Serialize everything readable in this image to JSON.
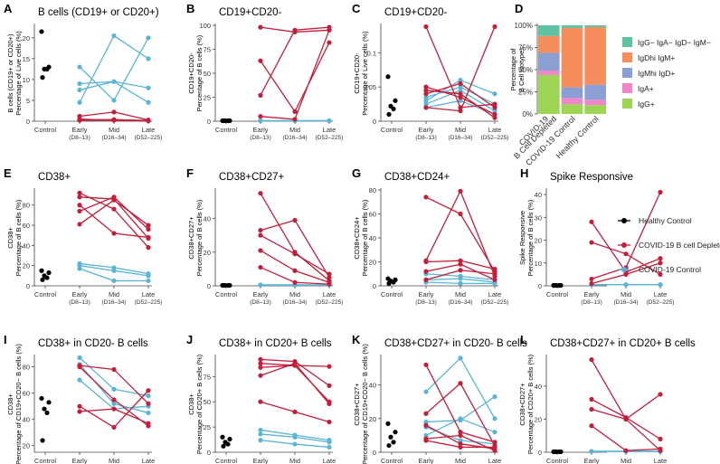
{
  "legend": {
    "title": "",
    "items": [
      {
        "label": "Healthy Control",
        "color": "#000000"
      },
      {
        "label": "COVID-19 B cell Depleted",
        "color": "#c41e3a"
      },
      {
        "label": "COVID-19 Control",
        "color": "#5ab4d6"
      }
    ]
  },
  "chart_data": [
    {
      "letter": "A",
      "type": "scatter",
      "title": "B cells (CD19+ or CD20+)",
      "ylabel": [
        "B cells (CD19+ or CD20+)",
        "Percentage of Live cells (%)"
      ],
      "ylim": [
        0,
        23
      ],
      "yticks": [
        0,
        5,
        10,
        15,
        20
      ],
      "xcats": [
        "Control",
        "Early\n(D8–13)",
        "Mid\n(D16–34)",
        "Late\n(D52–225)"
      ],
      "control": [
        21.5,
        13,
        12.5,
        12.5,
        10.5
      ],
      "depleted": [
        [
          1.2,
          2.2,
          0.3
        ],
        [
          0.3,
          0.4,
          0.1
        ],
        [
          0.5,
          0.2,
          0.1
        ],
        [
          0.2,
          0.3,
          0.2
        ]
      ],
      "covidctrl": [
        [
          13,
          5,
          20
        ],
        [
          7.5,
          9.5,
          4.5
        ],
        [
          9,
          9.5,
          8
        ],
        [
          4.5,
          20.5,
          15
        ]
      ]
    },
    {
      "letter": "B",
      "type": "scatter",
      "title": "CD19+CD20-",
      "ylabel": [
        "CD19+CD20-",
        "Percentage of B cells (%)"
      ],
      "ylim": [
        0,
        100
      ],
      "yticks": [
        0,
        25,
        50,
        75,
        100
      ],
      "xcats": [
        "Control",
        "Early\n(D8–13)",
        "Mid\n(D16–34)",
        "Late\n(D52–225)"
      ],
      "control": [
        0.5,
        0.5,
        0.5,
        0.5,
        0.5
      ],
      "depleted": [
        [
          98,
          93,
          95
        ],
        [
          63,
          10,
          82
        ],
        [
          27,
          95,
          98
        ],
        [
          5,
          2,
          95
        ]
      ],
      "covidctrl": [
        [
          0.5,
          0.5,
          0.5
        ],
        [
          0.5,
          0.5,
          0.5
        ],
        [
          0.5,
          0.5,
          0.5
        ]
      ]
    },
    {
      "letter": "C",
      "type": "scatter",
      "title": "CD19+CD20-",
      "ylabel": [
        "CD19+CD20-",
        "Percentage of Live cells (%)"
      ],
      "ylim": [
        0,
        0.14
      ],
      "yticks": [
        0,
        0.05,
        0.1
      ],
      "xcats": [
        "Control",
        "Early\n(D8–13)",
        "Mid\n(D16–34)",
        "Late\n(D52–225)"
      ],
      "control": [
        0.065,
        0.03,
        0.022,
        0.018,
        0.01
      ],
      "depleted": [
        [
          0.138,
          0.02,
          0.025
        ],
        [
          0.05,
          0.035,
          0.01
        ],
        [
          0.04,
          0.055,
          0.02
        ],
        [
          0.02,
          0.015,
          0.138
        ],
        [
          0.045,
          0.04,
          0.005
        ]
      ],
      "covidctrl": [
        [
          0.03,
          0.06,
          0.04
        ],
        [
          0.025,
          0.045,
          0.015
        ],
        [
          0.035,
          0.05,
          0.025
        ],
        [
          0.02,
          0.03,
          0.01
        ]
      ]
    },
    {
      "letter": "D",
      "type": "stacked-bar",
      "title": "",
      "ylabel": [
        "Percentage of",
        "B Cell Isotypes"
      ],
      "ylim": [
        0,
        100
      ],
      "yticks": [
        "0%",
        "25%",
        "50%",
        "75%",
        "100%"
      ],
      "categories": [
        "COVID-19\nB Cell Depleted",
        "COVID-19 Control",
        "Healthy Control"
      ],
      "series": [
        {
          "name": "IgG− IgA− IgD− IgM−",
          "color": "#5fc2a3",
          "values": [
            12,
            3,
            2
          ]
        },
        {
          "name": "IgDhi IgM+",
          "color": "#f58d5c",
          "values": [
            19,
            67,
            65
          ]
        },
        {
          "name": "IgMhi IgD+",
          "color": "#8c9fd2",
          "values": [
            20,
            12,
            17
          ]
        },
        {
          "name": "IgA+",
          "color": "#ee86c8",
          "values": [
            5,
            7,
            6
          ]
        },
        {
          "name": "IgG+",
          "color": "#9ed454",
          "values": [
            44,
            11,
            10
          ]
        }
      ]
    },
    {
      "letter": "E",
      "type": "scatter",
      "title": "CD38+",
      "ylabel": [
        "CD38+",
        "Percentage of B cells (%)"
      ],
      "ylim": [
        0,
        95
      ],
      "yticks": [
        0,
        20,
        40,
        60,
        80
      ],
      "xcats": [
        "Control",
        "Early\n(D8–13)",
        "Mid\n(D16–34)",
        "Late\n(D52–225)"
      ],
      "control": [
        15,
        13,
        10,
        8,
        6
      ],
      "depleted": [
        [
          92,
          76,
          38
        ],
        [
          88,
          86,
          47
        ],
        [
          80,
          52,
          48
        ],
        [
          74,
          88,
          56
        ],
        [
          61,
          85,
          60
        ]
      ],
      "covidctrl": [
        [
          22,
          18,
          12
        ],
        [
          20,
          15,
          10
        ],
        [
          17,
          5,
          5
        ]
      ]
    },
    {
      "letter": "F",
      "type": "scatter",
      "title": "CD38+CD27+",
      "ylabel": [
        "CD38+CD27+",
        "Percentage of B cells (%)"
      ],
      "ylim": [
        0,
        57
      ],
      "yticks": [
        0,
        20,
        40
      ],
      "xcats": [
        "Control",
        "Early\n(D8–13)",
        "Mid\n(D16–34)",
        "Late\n(D52–225)"
      ],
      "control": [
        0.3,
        0.3,
        0.3,
        0.3,
        0.3
      ],
      "depleted": [
        [
          55,
          20,
          3
        ],
        [
          33,
          39,
          5
        ],
        [
          30,
          19,
          7
        ],
        [
          21,
          9,
          2
        ],
        [
          11,
          2,
          1
        ]
      ],
      "covidctrl": [
        [
          0.5,
          0.5,
          0.5
        ],
        [
          0.5,
          0.5,
          0.5
        ],
        [
          0.5,
          0.5,
          0.5
        ]
      ]
    },
    {
      "letter": "G",
      "type": "scatter",
      "title": "CD38+CD24+",
      "ylabel": [
        "CD38+CD24+",
        "Percentage of B cells (%)"
      ],
      "ylim": [
        0,
        80
      ],
      "yticks": [
        0,
        20,
        40,
        60,
        80
      ],
      "xcats": [
        "Control",
        "Early\n(D8–13)",
        "Mid\n(D16–34)",
        "Late\n(D52–225)"
      ],
      "control": [
        6,
        5,
        4,
        3,
        2
      ],
      "depleted": [
        [
          74,
          60,
          12
        ],
        [
          21,
          79,
          8
        ],
        [
          20,
          21,
          14
        ],
        [
          12,
          18,
          5
        ],
        [
          5,
          13,
          10
        ]
      ],
      "covidctrl": [
        [
          10,
          8,
          5
        ],
        [
          5,
          6,
          3
        ],
        [
          3,
          2,
          2
        ]
      ]
    },
    {
      "letter": "H",
      "type": "scatter",
      "title": "Spike Responsive",
      "ylabel": [
        "Spike Responsive",
        "Percentage of B cells (%)"
      ],
      "ylim": [
        0,
        42
      ],
      "yticks": [
        0,
        10,
        20,
        30,
        40
      ],
      "xcats": [
        "Control",
        "Early\n(D8–13)",
        "Mid\n(D16–34)",
        "Late\n(D52–225)"
      ],
      "control": [
        0.2,
        0.2,
        0.2,
        0.2,
        0.2
      ],
      "depleted": [
        [
          28,
          6,
          12
        ],
        [
          19,
          14,
          5
        ],
        [
          3,
          8,
          41
        ],
        [
          1,
          5,
          10
        ]
      ],
      "covidctrl": [
        [
          0.5,
          0.5,
          0.5
        ],
        [
          0.5,
          0.5,
          0.5
        ]
      ]
    },
    {
      "letter": "I",
      "type": "scatter",
      "title": "CD38+ in CD20- B cells",
      "ylabel": [
        "CD38+",
        "Percentage of CD19+CD20− B cells (%)"
      ],
      "ylim": [
        15,
        88
      ],
      "yticks": [
        20,
        40,
        60,
        80
      ],
      "xcats": [
        "Control",
        "Early\n(D8–13)",
        "Mid\n(D16–34)",
        "Late\n(D52–225)"
      ],
      "control": [
        56,
        53,
        48,
        45,
        24
      ],
      "depleted": [
        [
          81,
          78,
          52
        ],
        [
          80,
          55,
          35
        ],
        [
          50,
          34,
          62
        ],
        [
          46,
          48,
          37
        ]
      ],
      "covidctrl": [
        [
          87,
          63,
          58
        ],
        [
          82,
          52,
          45
        ],
        [
          70,
          48,
          50
        ]
      ]
    },
    {
      "letter": "J",
      "type": "scatter",
      "title": "CD38+ in CD20+ B cells",
      "ylabel": [
        "CD38+",
        "Percentage of CD20+ B cells (%)"
      ],
      "ylim": [
        0,
        95
      ],
      "yticks": [
        0,
        25,
        50,
        75
      ],
      "xcats": [
        "Control",
        "Early\n(D8–13)",
        "Mid\n(D16–34)",
        "Late\n(D52–225)"
      ],
      "control": [
        15,
        13,
        10,
        8,
        6
      ],
      "depleted": [
        [
          92,
          90,
          66
        ],
        [
          88,
          86,
          85
        ],
        [
          84,
          86,
          50
        ],
        [
          76,
          88,
          48
        ],
        [
          50,
          40,
          30
        ]
      ],
      "covidctrl": [
        [
          22,
          17,
          12
        ],
        [
          18,
          15,
          10
        ],
        [
          12,
          8,
          5
        ]
      ]
    },
    {
      "letter": "K",
      "type": "scatter",
      "title": "CD38+CD27+ in CD20- B cells",
      "ylabel": [
        "CD38+CD27+",
        "Percentage of CD19+CD20− B cells (%)"
      ],
      "ylim": [
        0,
        57
      ],
      "yticks": [
        0,
        20,
        40
      ],
      "xcats": [
        "Control",
        "Early\n(D8–13)",
        "Mid\n(D16–34)",
        "Late\n(D52–225)"
      ],
      "control": [
        17,
        12,
        9,
        6,
        4
      ],
      "depleted": [
        [
          52,
          12,
          6
        ],
        [
          23,
          41,
          4
        ],
        [
          16,
          5,
          2
        ],
        [
          8,
          10,
          1
        ],
        [
          7,
          3,
          3
        ]
      ],
      "covidctrl": [
        [
          36,
          56,
          20
        ],
        [
          18,
          19,
          33
        ],
        [
          10,
          20,
          12
        ],
        [
          15,
          7,
          5
        ]
      ]
    },
    {
      "letter": "L",
      "type": "scatter",
      "title": "CD38+CD27+ in CD20+ B cells",
      "ylabel": [
        "CD38+CD27+",
        "Percentage of CD20+ B cells (%)"
      ],
      "ylim": [
        0,
        58
      ],
      "yticks": [
        0,
        20,
        40
      ],
      "xcats": [
        "Control",
        "Early\n(D8–13)",
        "Mid\n(D16–34)",
        "Late\n(D52–225)"
      ],
      "control": [
        0.3,
        0.3,
        0.3,
        0.3,
        0.3
      ],
      "depleted": [
        [
          56,
          20,
          35
        ],
        [
          32,
          21,
          8
        ],
        [
          26,
          20,
          1
        ],
        [
          16,
          1,
          2
        ]
      ],
      "covidctrl": [
        [
          0.5,
          0.5,
          0.5
        ],
        [
          0.5,
          0.5,
          0.5
        ],
        [
          0.5,
          0.5,
          0.5
        ]
      ]
    }
  ]
}
